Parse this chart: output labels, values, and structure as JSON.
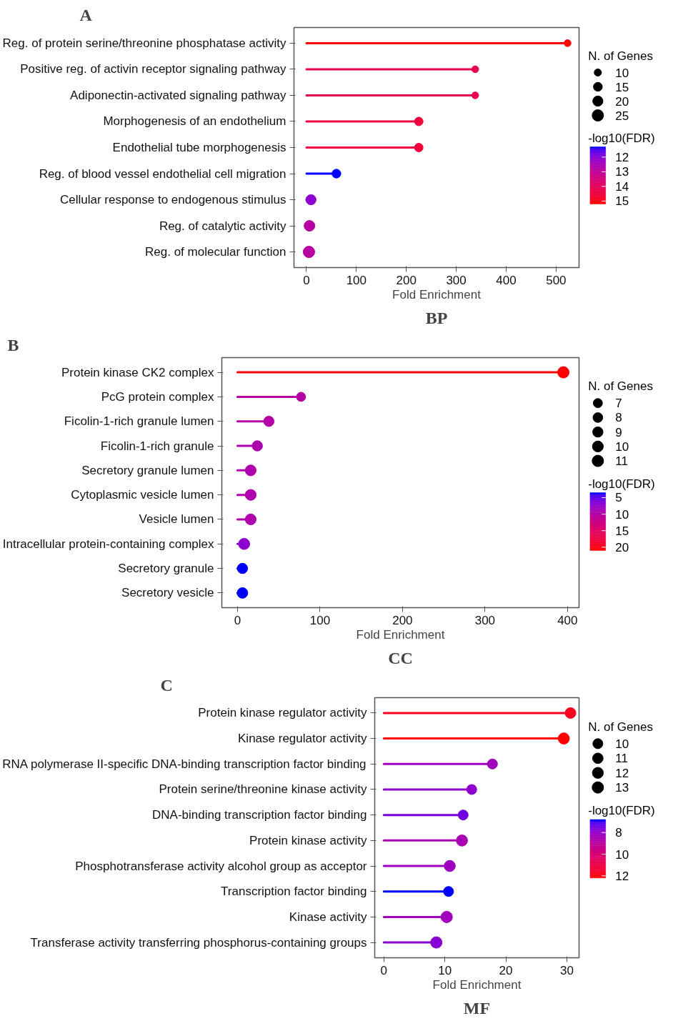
{
  "chart_data": [
    {
      "type": "lollipop",
      "orientation": "horizontal",
      "title": "A",
      "subtitle": "BP",
      "xlabel": "Fold Enrichment",
      "legend_title": "N. of Genes",
      "clabel": "-log10(FDR)",
      "grid": false,
      "marker": "circle",
      "categories": [
        "Reg. of protein serine/threonine phosphatase activity",
        "Positive reg. of activin receptor signaling pathway",
        "Adiponectin-activated signaling pathway",
        "Morphogenesis of an endothelium",
        "Endothelial tube morphogenesis",
        "Reg. of blood vessel endothelial cell migration",
        "Cellular response to endogenous stimulus",
        "Reg. of catalytic activity",
        "Reg. of molecular function"
      ],
      "values": [
        523,
        338,
        338,
        225,
        225,
        60,
        9,
        6,
        5
      ],
      "sizes": [
        9,
        9,
        9,
        14,
        14,
        15,
        20,
        22,
        25
      ],
      "size_legend": [
        10,
        15,
        20,
        25
      ],
      "cvalues": [
        15.2,
        14.2,
        14.2,
        14.5,
        14.5,
        11.3,
        12.1,
        12.8,
        12.8
      ],
      "clim": [
        11.3,
        15.2
      ],
      "cticks": [
        12,
        13,
        14,
        15
      ],
      "xlim": [
        -25,
        546
      ],
      "xticks": [
        0,
        100,
        200,
        300,
        400,
        500
      ]
    },
    {
      "type": "lollipop",
      "orientation": "horizontal",
      "title": "B",
      "subtitle": "CC",
      "xlabel": "Fold Enrichment",
      "legend_title": "N. of Genes",
      "clabel": "-log10(FDR)",
      "grid": false,
      "marker": "circle",
      "categories": [
        "Protein kinase CK2 complex",
        "PcG protein complex",
        "Ficolin-1-rich granule lumen",
        "Ficolin-1-rich granule",
        "Secretory granule lumen",
        "Cytoplasmic vesicle lumen",
        "Vesicle lumen",
        "Intracellular protein-containing complex",
        "Secretory granule",
        "Secretory vesicle"
      ],
      "values": [
        395,
        77,
        38,
        24,
        16,
        16,
        16,
        8,
        6,
        6
      ],
      "sizes": [
        11,
        7,
        9,
        9,
        10,
        10,
        10,
        10.5,
        9,
        9.5
      ],
      "size_legend": [
        7,
        8,
        9,
        10,
        11
      ],
      "cvalues": [
        21,
        10,
        10,
        9.5,
        9.5,
        9.5,
        9.5,
        7,
        3.5,
        3.5
      ],
      "clim": [
        3.5,
        21
      ],
      "cticks": [
        5,
        10,
        15,
        20
      ],
      "xlim": [
        -19,
        414
      ],
      "xticks": [
        0,
        100,
        200,
        300,
        400
      ]
    },
    {
      "type": "lollipop",
      "orientation": "horizontal",
      "title": "C",
      "subtitle": "MF",
      "xlabel": "Fold Enrichment",
      "legend_title": "N. of Genes",
      "clabel": "-log10(FDR)",
      "grid": false,
      "marker": "circle",
      "categories": [
        "Protein kinase regulator activity",
        "Kinase regulator activity",
        "RNA polymerase II-specific DNA-binding transcription factor binding",
        "Protein serine/threonine kinase activity",
        "DNA-binding transcription factor binding",
        "Protein kinase activity",
        "Phosphotransferase activity alcohol group as acceptor",
        "Transcription factor binding",
        "Kinase activity",
        "Transferase activity transferring phosphorus-containing groups"
      ],
      "values": [
        30.6,
        29.5,
        17.8,
        14.4,
        13.0,
        12.8,
        10.8,
        10.6,
        10.3,
        8.6
      ],
      "sizes": [
        11.5,
        12.5,
        10,
        10,
        10,
        12.5,
        12.5,
        10,
        13,
        13
      ],
      "size_legend": [
        10,
        11,
        12,
        13
      ],
      "cvalues": [
        11.8,
        12.2,
        8.3,
        7.9,
        7.5,
        8.5,
        8.2,
        6.8,
        8.3,
        7.8
      ],
      "clim": [
        6.8,
        12.2
      ],
      "cticks": [
        8,
        10,
        12
      ],
      "xlim": [
        -1.5,
        32
      ],
      "xticks": [
        0,
        10,
        20,
        30
      ]
    }
  ]
}
